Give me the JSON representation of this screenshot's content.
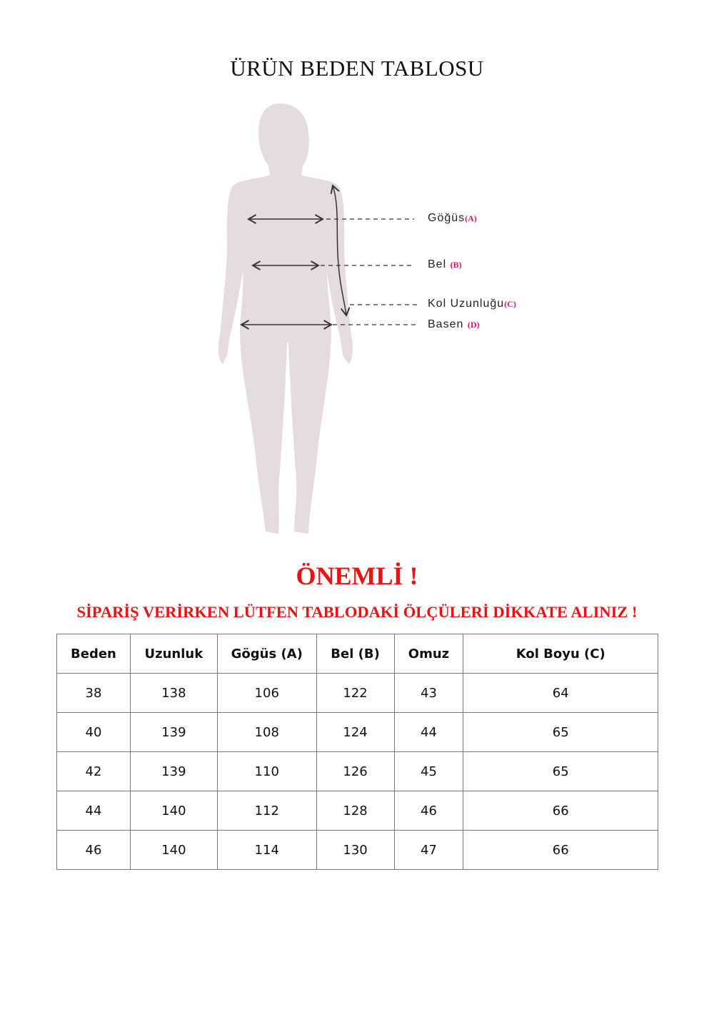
{
  "title": "ÜRÜN BEDEN TABLOSU",
  "figure": {
    "labels": [
      {
        "text": "Göğüs",
        "key": "(A)"
      },
      {
        "text": "Bel",
        "key": "(B)"
      },
      {
        "text": "Kol Uzunluğu",
        "key": "(C)"
      },
      {
        "text": "Basen",
        "key": "(D)"
      }
    ],
    "silhouette_color": "#e5dcdd",
    "key_color": "#e0106a"
  },
  "notice": {
    "heading": "ÖNEMLİ !",
    "text": "SİPARİŞ VERİRKEN LÜTFEN TABLODAKİ ÖLÇÜLERİ DİKKATE ALINIZ !",
    "color": "#ee1111"
  },
  "table": {
    "headers": [
      "Beden",
      "Uzunluk",
      "Gögüs (A)",
      "Bel (B)",
      "Omuz",
      "Kol Boyu (C)"
    ],
    "rows": [
      [
        "38",
        "138",
        "106",
        "122",
        "43",
        "64"
      ],
      [
        "40",
        "139",
        "108",
        "124",
        "44",
        "65"
      ],
      [
        "42",
        "139",
        "110",
        "126",
        "45",
        "65"
      ],
      [
        "44",
        "140",
        "112",
        "128",
        "46",
        "66"
      ],
      [
        "46",
        "140",
        "114",
        "130",
        "47",
        "66"
      ]
    ]
  }
}
